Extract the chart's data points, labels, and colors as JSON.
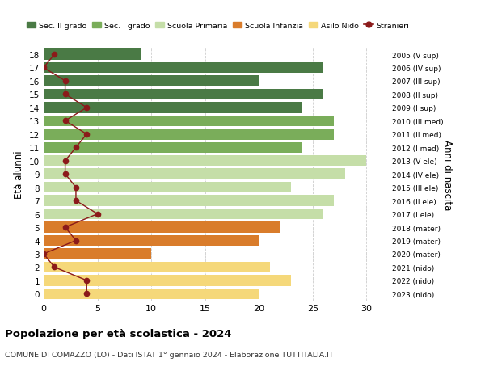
{
  "ages": [
    18,
    17,
    16,
    15,
    14,
    13,
    12,
    11,
    10,
    9,
    8,
    7,
    6,
    5,
    4,
    3,
    2,
    1,
    0
  ],
  "years": [
    "2005 (V sup)",
    "2006 (IV sup)",
    "2007 (III sup)",
    "2008 (II sup)",
    "2009 (I sup)",
    "2010 (III med)",
    "2011 (II med)",
    "2012 (I med)",
    "2013 (V ele)",
    "2014 (IV ele)",
    "2015 (III ele)",
    "2016 (II ele)",
    "2017 (I ele)",
    "2018 (mater)",
    "2019 (mater)",
    "2020 (mater)",
    "2021 (nido)",
    "2022 (nido)",
    "2023 (nido)"
  ],
  "bar_values": [
    9,
    26,
    20,
    26,
    24,
    27,
    27,
    24,
    30,
    28,
    23,
    27,
    26,
    22,
    20,
    10,
    21,
    23,
    20
  ],
  "bar_colors": [
    "#4a7a45",
    "#4a7a45",
    "#4a7a45",
    "#4a7a45",
    "#4a7a45",
    "#7aad5a",
    "#7aad5a",
    "#7aad5a",
    "#c5dea8",
    "#c5dea8",
    "#c5dea8",
    "#c5dea8",
    "#c5dea8",
    "#d97c2b",
    "#d97c2b",
    "#d97c2b",
    "#f5d87a",
    "#f5d87a",
    "#f5d87a"
  ],
  "stranieri_values": [
    1,
    0,
    2,
    2,
    4,
    2,
    4,
    3,
    2,
    2,
    3,
    3,
    5,
    2,
    3,
    0,
    1,
    4,
    4
  ],
  "stranieri_color": "#8b1a1a",
  "ylabel": "Età alunni",
  "right_ylabel": "Anni di nascita",
  "title": "Popolazione per età scolastica - 2024",
  "subtitle": "COMUNE DI COMAZZO (LO) - Dati ISTAT 1° gennaio 2024 - Elaborazione TUTTITALIA.IT",
  "xlim": [
    0,
    32
  ],
  "xticks": [
    0,
    5,
    10,
    15,
    20,
    25,
    30
  ],
  "legend_labels": [
    "Sec. II grado",
    "Sec. I grado",
    "Scuola Primaria",
    "Scuola Infanzia",
    "Asilo Nido",
    "Stranieri"
  ],
  "legend_colors": [
    "#4a7a45",
    "#7aad5a",
    "#c5dea8",
    "#d97c2b",
    "#f5d87a",
    "#8b1a1a"
  ],
  "background_color": "#ffffff",
  "grid_color": "#cccccc"
}
